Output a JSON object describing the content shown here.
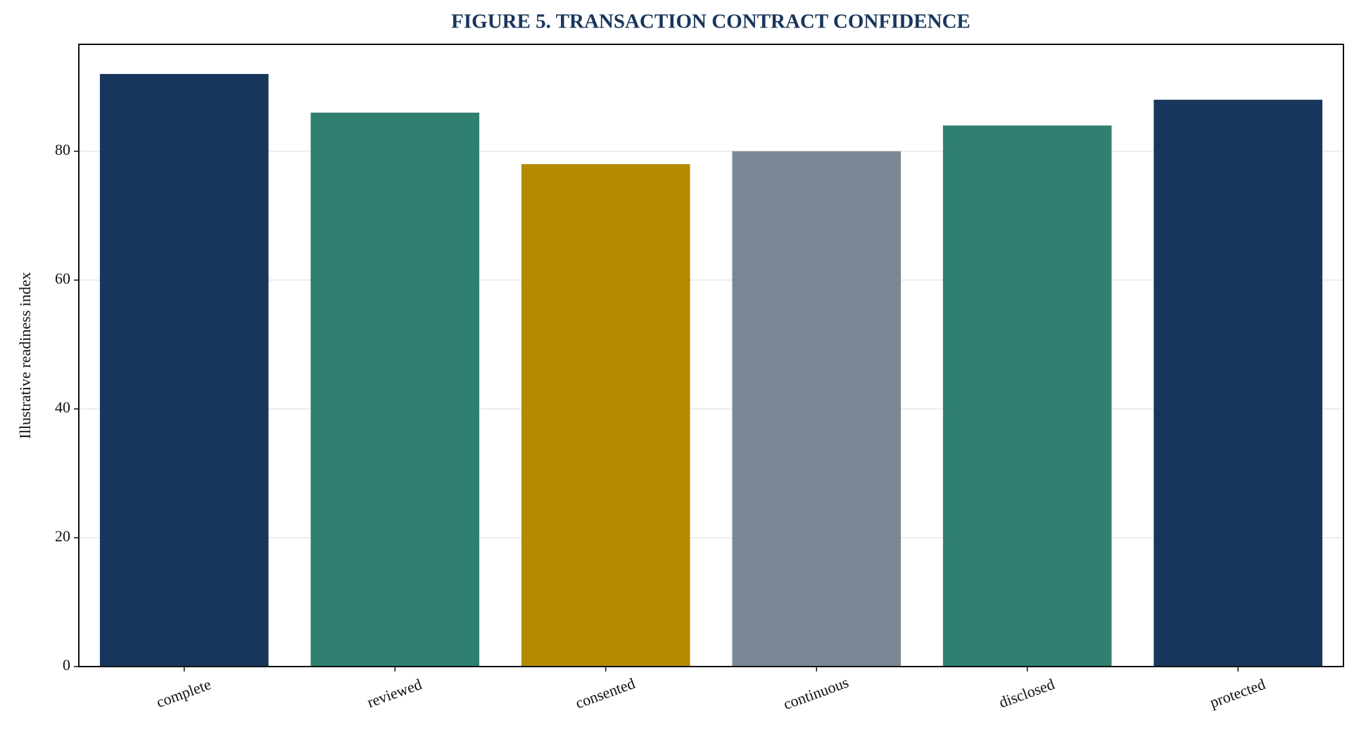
{
  "chart_data": {
    "type": "bar",
    "title": "FIGURE 5. TRANSACTION CONTRACT CONFIDENCE",
    "y_label": "Illustrative readiness index",
    "categories": [
      "complete",
      "reviewed",
      "consented",
      "continuous",
      "disclosed",
      "protected"
    ],
    "values": [
      92,
      86,
      78,
      80,
      84,
      88
    ],
    "colors": [
      "#18365c",
      "#2f8070",
      "#b38a00",
      "#7a8795",
      "#2f8070",
      "#18365c"
    ],
    "ylim": [
      0,
      96.6
    ],
    "yticks": [
      0,
      20,
      40,
      60,
      80
    ],
    "grid": true
  }
}
